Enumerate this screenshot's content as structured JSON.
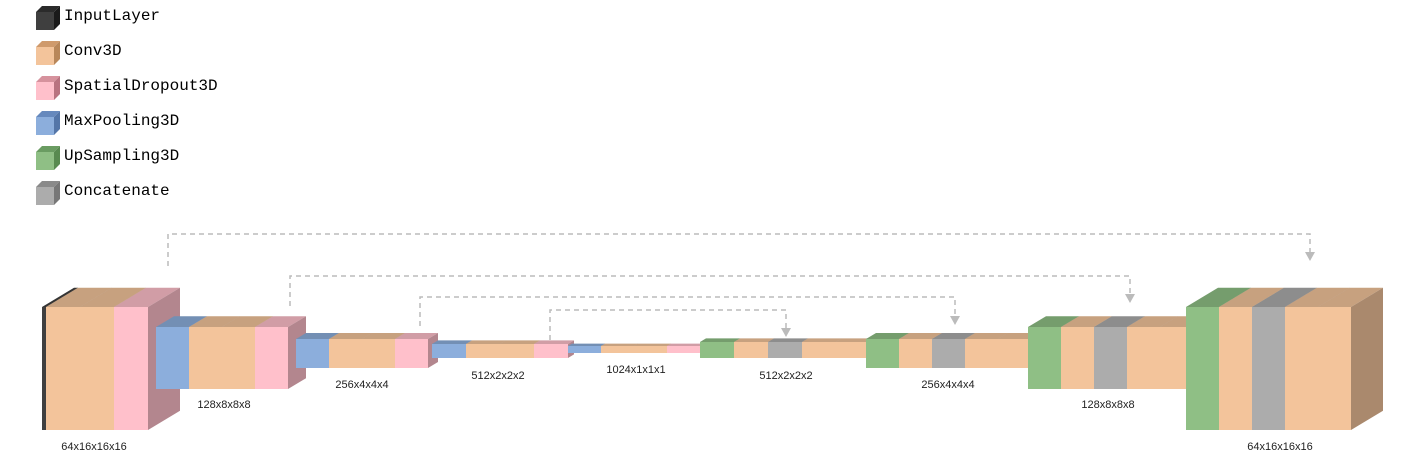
{
  "legend": [
    {
      "name": "InputLayer",
      "color": "#3f3f3f",
      "icon": "input-layer-cube-icon"
    },
    {
      "name": "Conv3D",
      "color": "#f3c49b",
      "icon": "conv3d-cube-icon"
    },
    {
      "name": "SpatialDropout3D",
      "color": "#ffc0cb",
      "icon": "spatial-dropout3d-cube-icon"
    },
    {
      "name": "MaxPooling3D",
      "color": "#8caedc",
      "icon": "max-pooling3d-cube-icon"
    },
    {
      "name": "UpSampling3D",
      "color": "#8fbf85",
      "icon": "up-sampling3d-cube-icon"
    },
    {
      "name": "Concatenate",
      "color": "#acacac",
      "icon": "concatenate-cube-icon"
    }
  ],
  "dimension_labels": {
    "enc_64": "64x16x16x16",
    "enc_128": "128x8x8x8",
    "enc_256": "256x4x4x4",
    "enc_512": "512x2x2x2",
    "bottleneck": "1024x1x1x1",
    "dec_512": "512x2x2x2",
    "dec_256": "256x4x4x4",
    "dec_128": "128x8x8x8",
    "dec_64": "64x16x16x16"
  },
  "stages": [
    {
      "level": "64",
      "layers": [
        "InputLayer",
        "Conv3D",
        "Conv3D",
        "SpatialDropout3D"
      ]
    },
    {
      "level": "128",
      "layers": [
        "MaxPooling3D",
        "Conv3D",
        "Conv3D",
        "SpatialDropout3D"
      ]
    },
    {
      "level": "256",
      "layers": [
        "MaxPooling3D",
        "Conv3D",
        "Conv3D",
        "SpatialDropout3D"
      ]
    },
    {
      "level": "512",
      "layers": [
        "MaxPooling3D",
        "Conv3D",
        "Conv3D",
        "SpatialDropout3D"
      ]
    },
    {
      "level": "1024",
      "layers": [
        "MaxPooling3D",
        "Conv3D",
        "Conv3D",
        "SpatialDropout3D"
      ]
    },
    {
      "level": "512",
      "layers": [
        "UpSampling3D",
        "Conv3D",
        "Concatenate",
        "Conv3D",
        "Conv3D"
      ]
    },
    {
      "level": "256",
      "layers": [
        "UpSampling3D",
        "Conv3D",
        "Concatenate",
        "Conv3D",
        "Conv3D"
      ]
    },
    {
      "level": "128",
      "layers": [
        "UpSampling3D",
        "Conv3D",
        "Concatenate",
        "Conv3D",
        "Conv3D"
      ]
    },
    {
      "level": "64",
      "layers": [
        "UpSampling3D",
        "Conv3D",
        "Concatenate",
        "Conv3D",
        "Conv3D"
      ]
    }
  ]
}
